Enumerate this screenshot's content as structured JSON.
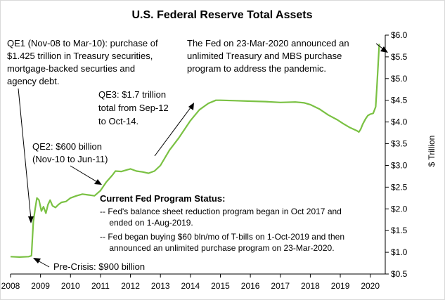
{
  "chart_data": {
    "type": "line",
    "title": "U.S. Federal Reserve Total Assets",
    "xlabel": "",
    "ylabel": "$ Trillion",
    "xlim": [
      2008,
      2020.5
    ],
    "ylim": [
      0.5,
      6.0
    ],
    "x_ticks": [
      2008,
      2009,
      2010,
      2011,
      2012,
      2013,
      2014,
      2015,
      2016,
      2017,
      2018,
      2019,
      2020
    ],
    "x_tick_labels": [
      "2008",
      "2009",
      "2010",
      "2011",
      "2012",
      "2013",
      "2014",
      "2015",
      "2016",
      "2017",
      "2018",
      "2019",
      "2020"
    ],
    "y_ticks": [
      0.5,
      1.0,
      1.5,
      2.0,
      2.5,
      3.0,
      3.5,
      4.0,
      4.5,
      5.0,
      5.5,
      6.0
    ],
    "y_tick_labels": [
      "$0.5",
      "$1.0",
      "$1.5",
      "$2.0",
      "$2.5",
      "$3.0",
      "$3.5",
      "$4.0",
      "$4.5",
      "$5.0",
      "$5.5",
      "$6.0"
    ],
    "y_axis_position": "right",
    "grid": false,
    "series_color": "#7ac143",
    "series": [
      {
        "name": "",
        "points": [
          [
            2008.0,
            0.9
          ],
          [
            2008.3,
            0.89
          ],
          [
            2008.6,
            0.9
          ],
          [
            2008.7,
            0.92
          ],
          [
            2008.72,
            1.2
          ],
          [
            2008.76,
            1.7
          ],
          [
            2008.82,
            2.0
          ],
          [
            2008.88,
            2.25
          ],
          [
            2008.95,
            2.2
          ],
          [
            2009.03,
            1.95
          ],
          [
            2009.1,
            2.05
          ],
          [
            2009.18,
            1.9
          ],
          [
            2009.25,
            2.1
          ],
          [
            2009.32,
            2.2
          ],
          [
            2009.4,
            2.07
          ],
          [
            2009.5,
            2.03
          ],
          [
            2009.6,
            2.1
          ],
          [
            2009.7,
            2.15
          ],
          [
            2009.85,
            2.17
          ],
          [
            2010.0,
            2.25
          ],
          [
            2010.2,
            2.3
          ],
          [
            2010.4,
            2.34
          ],
          [
            2010.6,
            2.32
          ],
          [
            2010.8,
            2.3
          ],
          [
            2011.0,
            2.42
          ],
          [
            2011.2,
            2.62
          ],
          [
            2011.4,
            2.78
          ],
          [
            2011.5,
            2.87
          ],
          [
            2011.7,
            2.86
          ],
          [
            2011.9,
            2.9
          ],
          [
            2012.0,
            2.92
          ],
          [
            2012.2,
            2.87
          ],
          [
            2012.4,
            2.85
          ],
          [
            2012.6,
            2.82
          ],
          [
            2012.8,
            2.87
          ],
          [
            2013.0,
            3.0
          ],
          [
            2013.3,
            3.35
          ],
          [
            2013.6,
            3.62
          ],
          [
            2014.0,
            4.03
          ],
          [
            2014.3,
            4.28
          ],
          [
            2014.6,
            4.43
          ],
          [
            2014.85,
            4.5
          ],
          [
            2015.0,
            4.5
          ],
          [
            2015.5,
            4.49
          ],
          [
            2016.0,
            4.48
          ],
          [
            2016.5,
            4.47
          ],
          [
            2017.0,
            4.45
          ],
          [
            2017.5,
            4.46
          ],
          [
            2017.8,
            4.44
          ],
          [
            2018.0,
            4.4
          ],
          [
            2018.3,
            4.3
          ],
          [
            2018.6,
            4.16
          ],
          [
            2018.9,
            4.05
          ],
          [
            2019.1,
            3.96
          ],
          [
            2019.3,
            3.88
          ],
          [
            2019.55,
            3.8
          ],
          [
            2019.62,
            3.77
          ],
          [
            2019.68,
            3.83
          ],
          [
            2019.75,
            3.95
          ],
          [
            2019.85,
            4.08
          ],
          [
            2019.92,
            4.15
          ],
          [
            2020.0,
            4.18
          ],
          [
            2020.1,
            4.2
          ],
          [
            2020.18,
            4.35
          ],
          [
            2020.22,
            4.8
          ],
          [
            2020.26,
            5.3
          ],
          [
            2020.3,
            5.8
          ]
        ]
      }
    ],
    "annotations": [
      {
        "id": "qe1",
        "lines": [
          "QE1 (Nov-08 to Mar-10): purchase of",
          "$1.425 trillion in Treasury securities,",
          "mortgage-backed securties and",
          "agency debt."
        ]
      },
      {
        "id": "qe2",
        "lines": [
          "QE2: $600 billion",
          "(Nov-10 to Jun-11)"
        ]
      },
      {
        "id": "qe3",
        "lines": [
          "QE3: $1.7 trillion",
          "total from Sep-12",
          "to Oct-14."
        ]
      },
      {
        "id": "pandemic",
        "lines": [
          "The Fed on 23-Mar-2020 announced an",
          "unlimited Treasury and MBS purchase",
          "program to address the pandemic."
        ]
      },
      {
        "id": "precrisis",
        "lines": [
          "Pre-Crisis:  $900 billion"
        ]
      },
      {
        "id": "status_title",
        "lines": [
          "Current Fed Program Status:"
        ]
      },
      {
        "id": "status_body",
        "lines": [
          "-- Fed's balance sheet reduction program began in Oct 2017 and",
          "    ended on 1-Aug-2019.",
          "-- Fed began buying $60 bln/mo of T-bills on 1-Oct-2019 and then",
          "    announced an unlimited purchase program on 23-Mar-2020."
        ]
      }
    ]
  }
}
